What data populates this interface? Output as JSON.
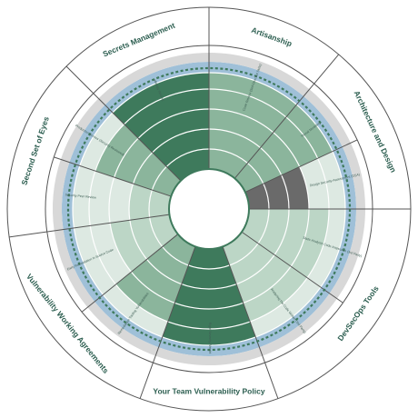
{
  "title": "",
  "colors": {
    "dark_green": "#3e7a5c",
    "mid_green": "#8bb59c",
    "light_green": "#bcd6c6",
    "very_light_green": "#dde9e2",
    "blue_band": "#9fc0d8",
    "gray_band": "#d8d8d8",
    "gray_dark": "#6a6a6a",
    "white": "#ffffff",
    "outline": "#555555",
    "dashed": "#3e7a5c"
  },
  "categories": [
    {
      "label": "Secrets Management",
      "start": -45,
      "end": 0,
      "subs": [
        {
          "label": "Secrets Storage",
          "fill": 5,
          "tone": "dark"
        }
      ]
    },
    {
      "label": "Artisanship",
      "start": 0,
      "end": 40,
      "subs": [
        {
          "label": "Code Review (Self-Directed Skills)",
          "fill": 5,
          "tone": "mid"
        }
      ]
    },
    {
      "label": "Architecture and Design",
      "start": 40,
      "end": 90,
      "subs": [
        {
          "label": "Threat Modeling",
          "fill": 5,
          "tone": "mid"
        },
        {
          "label": "Design Security Assessment (DSA)",
          "fill": 3,
          "tone": "gray"
        }
      ]
    },
    {
      "label": "DevSecOps Tools",
      "start": 90,
      "end": 160,
      "subs": [
        {
          "label": "Static Analysis Code Inspection (3rd Party)",
          "fill": 4,
          "tone": "light"
        },
        {
          "label": "Analyzing the Code Written (3rd Party)",
          "fill": 4,
          "tone": "light"
        }
      ]
    },
    {
      "label": "Your Team Vulnerability Policy",
      "start": 160,
      "end": 200,
      "subs": [
        {
          "label": "Right Severity Weight",
          "fill": 5,
          "tone": "dark"
        }
      ]
    },
    {
      "label": "Vulnerability Working Agreements",
      "start": 200,
      "end": 262,
      "subs": [
        {
          "label": "Remediation Tooling Vulnerabilities",
          "fill": 4,
          "tone": "mid"
        },
        {
          "label": "Early Remediation in Source Code",
          "fill": 3,
          "tone": "light"
        }
      ]
    },
    {
      "label": "Second Set of Eyes",
      "start": 262,
      "end": 315,
      "subs": [
        {
          "label": "Security Peer Review",
          "fill": 2,
          "tone": "light"
        },
        {
          "label": "Production Access (Security Reviewed)",
          "fill": 4,
          "tone": "mid"
        }
      ]
    }
  ]
}
